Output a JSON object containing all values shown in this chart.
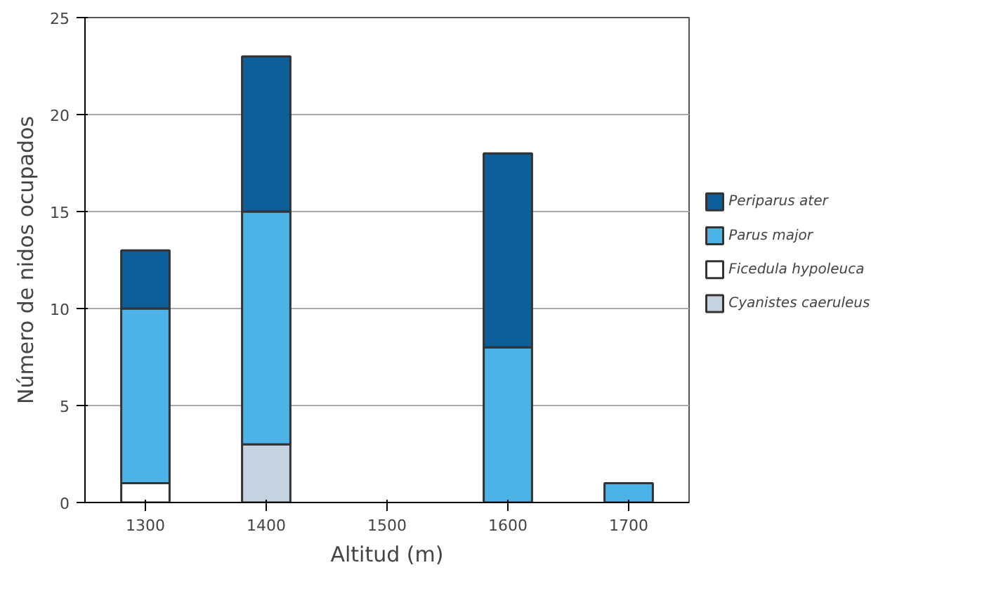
{
  "chart_data": {
    "type": "bar",
    "stacked": true,
    "xlabel": "Altitud (m)",
    "ylabel": "Número de nidos ocupados",
    "categories": [
      "1300",
      "1400",
      "1500",
      "1600",
      "1700"
    ],
    "series": [
      {
        "name": "Cyanistes caeruleus",
        "color": "#c5d3e0",
        "values": [
          0,
          3,
          0,
          0,
          0
        ]
      },
      {
        "name": "Ficedula hypoleuca",
        "color": "#ffffff",
        "values": [
          1,
          0,
          0,
          0,
          0
        ]
      },
      {
        "name": "Parus major",
        "color": "#4db3e6",
        "values": [
          9,
          12,
          0,
          8,
          1
        ]
      },
      {
        "name": "Periparus ater",
        "color": "#0e5e9a",
        "values": [
          3,
          8,
          0,
          10,
          0
        ]
      }
    ],
    "ylim": [
      0,
      25
    ],
    "yticks": [
      0,
      5,
      10,
      15,
      20,
      25
    ],
    "grid": "y",
    "legend": "right"
  }
}
